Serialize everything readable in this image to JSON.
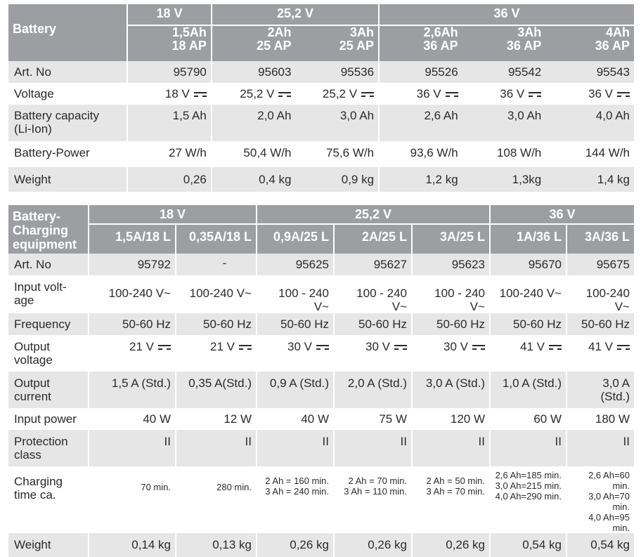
{
  "battery_table": {
    "header_label": "Battery",
    "groups": [
      "18 V",
      "25,2 V",
      "36 V"
    ],
    "models": [
      {
        "cap": "1,5Ah",
        "type": "18 AP"
      },
      {
        "cap": "2Ah",
        "type": "25 AP"
      },
      {
        "cap": "3Ah",
        "type": "25 AP"
      },
      {
        "cap": "2,6Ah",
        "type": "36 AP"
      },
      {
        "cap": "3Ah",
        "type": "36 AP"
      },
      {
        "cap": "4Ah",
        "type": "36 AP"
      }
    ],
    "rows": [
      {
        "label": "Art. No",
        "values": [
          "95790",
          "95603",
          "95536",
          "95526",
          "95542",
          "95543"
        ]
      },
      {
        "label": "Voltage",
        "values": [
          "18 V",
          "25,2 V",
          "25,2 V",
          "36 V",
          "36 V",
          "36 V"
        ]
      },
      {
        "label": "Battery capacity (Li-Ion)",
        "label_line1": "Battery capacity",
        "label_line2": "(Li-Ion)",
        "values": [
          "1,5 Ah",
          "2,0 Ah",
          "3,0 Ah",
          "2,6 Ah",
          "3,0 Ah",
          "4,0 Ah"
        ]
      },
      {
        "label": "Battery-Power",
        "values": [
          "27 W/h",
          "50,4 W/h",
          "75,6 W/h",
          "93,6 W/h",
          "108 W/h",
          "144 W/h"
        ]
      },
      {
        "label": "Weight",
        "values": [
          "0,26",
          "0,4 kg",
          "0,9 kg",
          "1,2 kg",
          "1,3kg",
          "1,4 kg"
        ]
      }
    ]
  },
  "charger_table": {
    "header_label_1": "Battery-",
    "header_label_2": "Charging",
    "header_label_3": "equipment",
    "groups": [
      "18 V",
      "25,2 V",
      "36 V"
    ],
    "models": [
      "1,5A/18 L",
      "0,35A/18 L",
      "0,9A/25 L",
      "2A/25 L",
      "3A/25 L",
      "1A/36 L",
      "3A/36 L"
    ],
    "rows": {
      "art_no": {
        "label": "Art. No",
        "values": [
          "95792",
          "-",
          "95625",
          "95627",
          "95623",
          "95670",
          "95675"
        ]
      },
      "input_voltage": {
        "label1": "Input volt-",
        "label2": "age",
        "values": [
          "100-240 V~",
          "100-240 V~",
          "100 - 240 V~",
          "100 - 240 V~",
          "100 - 240 V~",
          "100-240 V~",
          "100-240 V~"
        ]
      },
      "frequency": {
        "label": "Frequency",
        "values": [
          "50-60 Hz",
          "50-60 Hz",
          "50-60 Hz",
          "50-60 Hz",
          "50-60 Hz",
          "50-60 Hz",
          "50-60 Hz"
        ]
      },
      "output_voltage": {
        "label1": "Output",
        "label2": "voltage",
        "values": [
          "21 V",
          "21 V",
          "30 V",
          "30 V",
          "30 V",
          "41 V",
          "41 V"
        ]
      },
      "output_current": {
        "label1": "Output",
        "label2": "current",
        "values": [
          "1,5 A (Std.)",
          "0,35 A(Std.)",
          "0,9 A (Std.)",
          "2,0 A (Std.)",
          "3,0 A (Std.)",
          "1,0 A (Std.)",
          "3,0 A (Std.)"
        ]
      },
      "input_power": {
        "label": "Input power",
        "values": [
          "40 W",
          "12 W",
          "40 W",
          "75 W",
          "120 W",
          "60 W",
          "180 W"
        ]
      },
      "protection": {
        "label1": "Protection",
        "label2": "class",
        "values": [
          "II",
          "II",
          "II",
          "II",
          "II",
          "II",
          "II"
        ]
      },
      "charging_time": {
        "label1": "Charging",
        "label2": "time ca.",
        "values": [
          [
            "70 min."
          ],
          [
            "280 min."
          ],
          [
            "2 Ah = 160 min.",
            "3 Ah = 240 min."
          ],
          [
            "2 Ah = 70 min.",
            "3 Ah = 110 min."
          ],
          [
            "2 Ah = 50 min.",
            "3 Ah = 70 min."
          ],
          [
            "2,6 Ah=185 min.",
            "3,0 Ah=215 min.",
            "4,0 Ah=290 min."
          ],
          [
            "2,6 Ah=60 min.",
            "3,0 Ah=70 min.",
            "4,0 Ah=95 min."
          ]
        ]
      },
      "weight": {
        "label": "Weight",
        "values": [
          "0,14 kg",
          "0,13 kg",
          "0,26 kg",
          "0,26 kg",
          "0,26 kg",
          "0,54 kg",
          "0,54 kg"
        ]
      }
    }
  }
}
